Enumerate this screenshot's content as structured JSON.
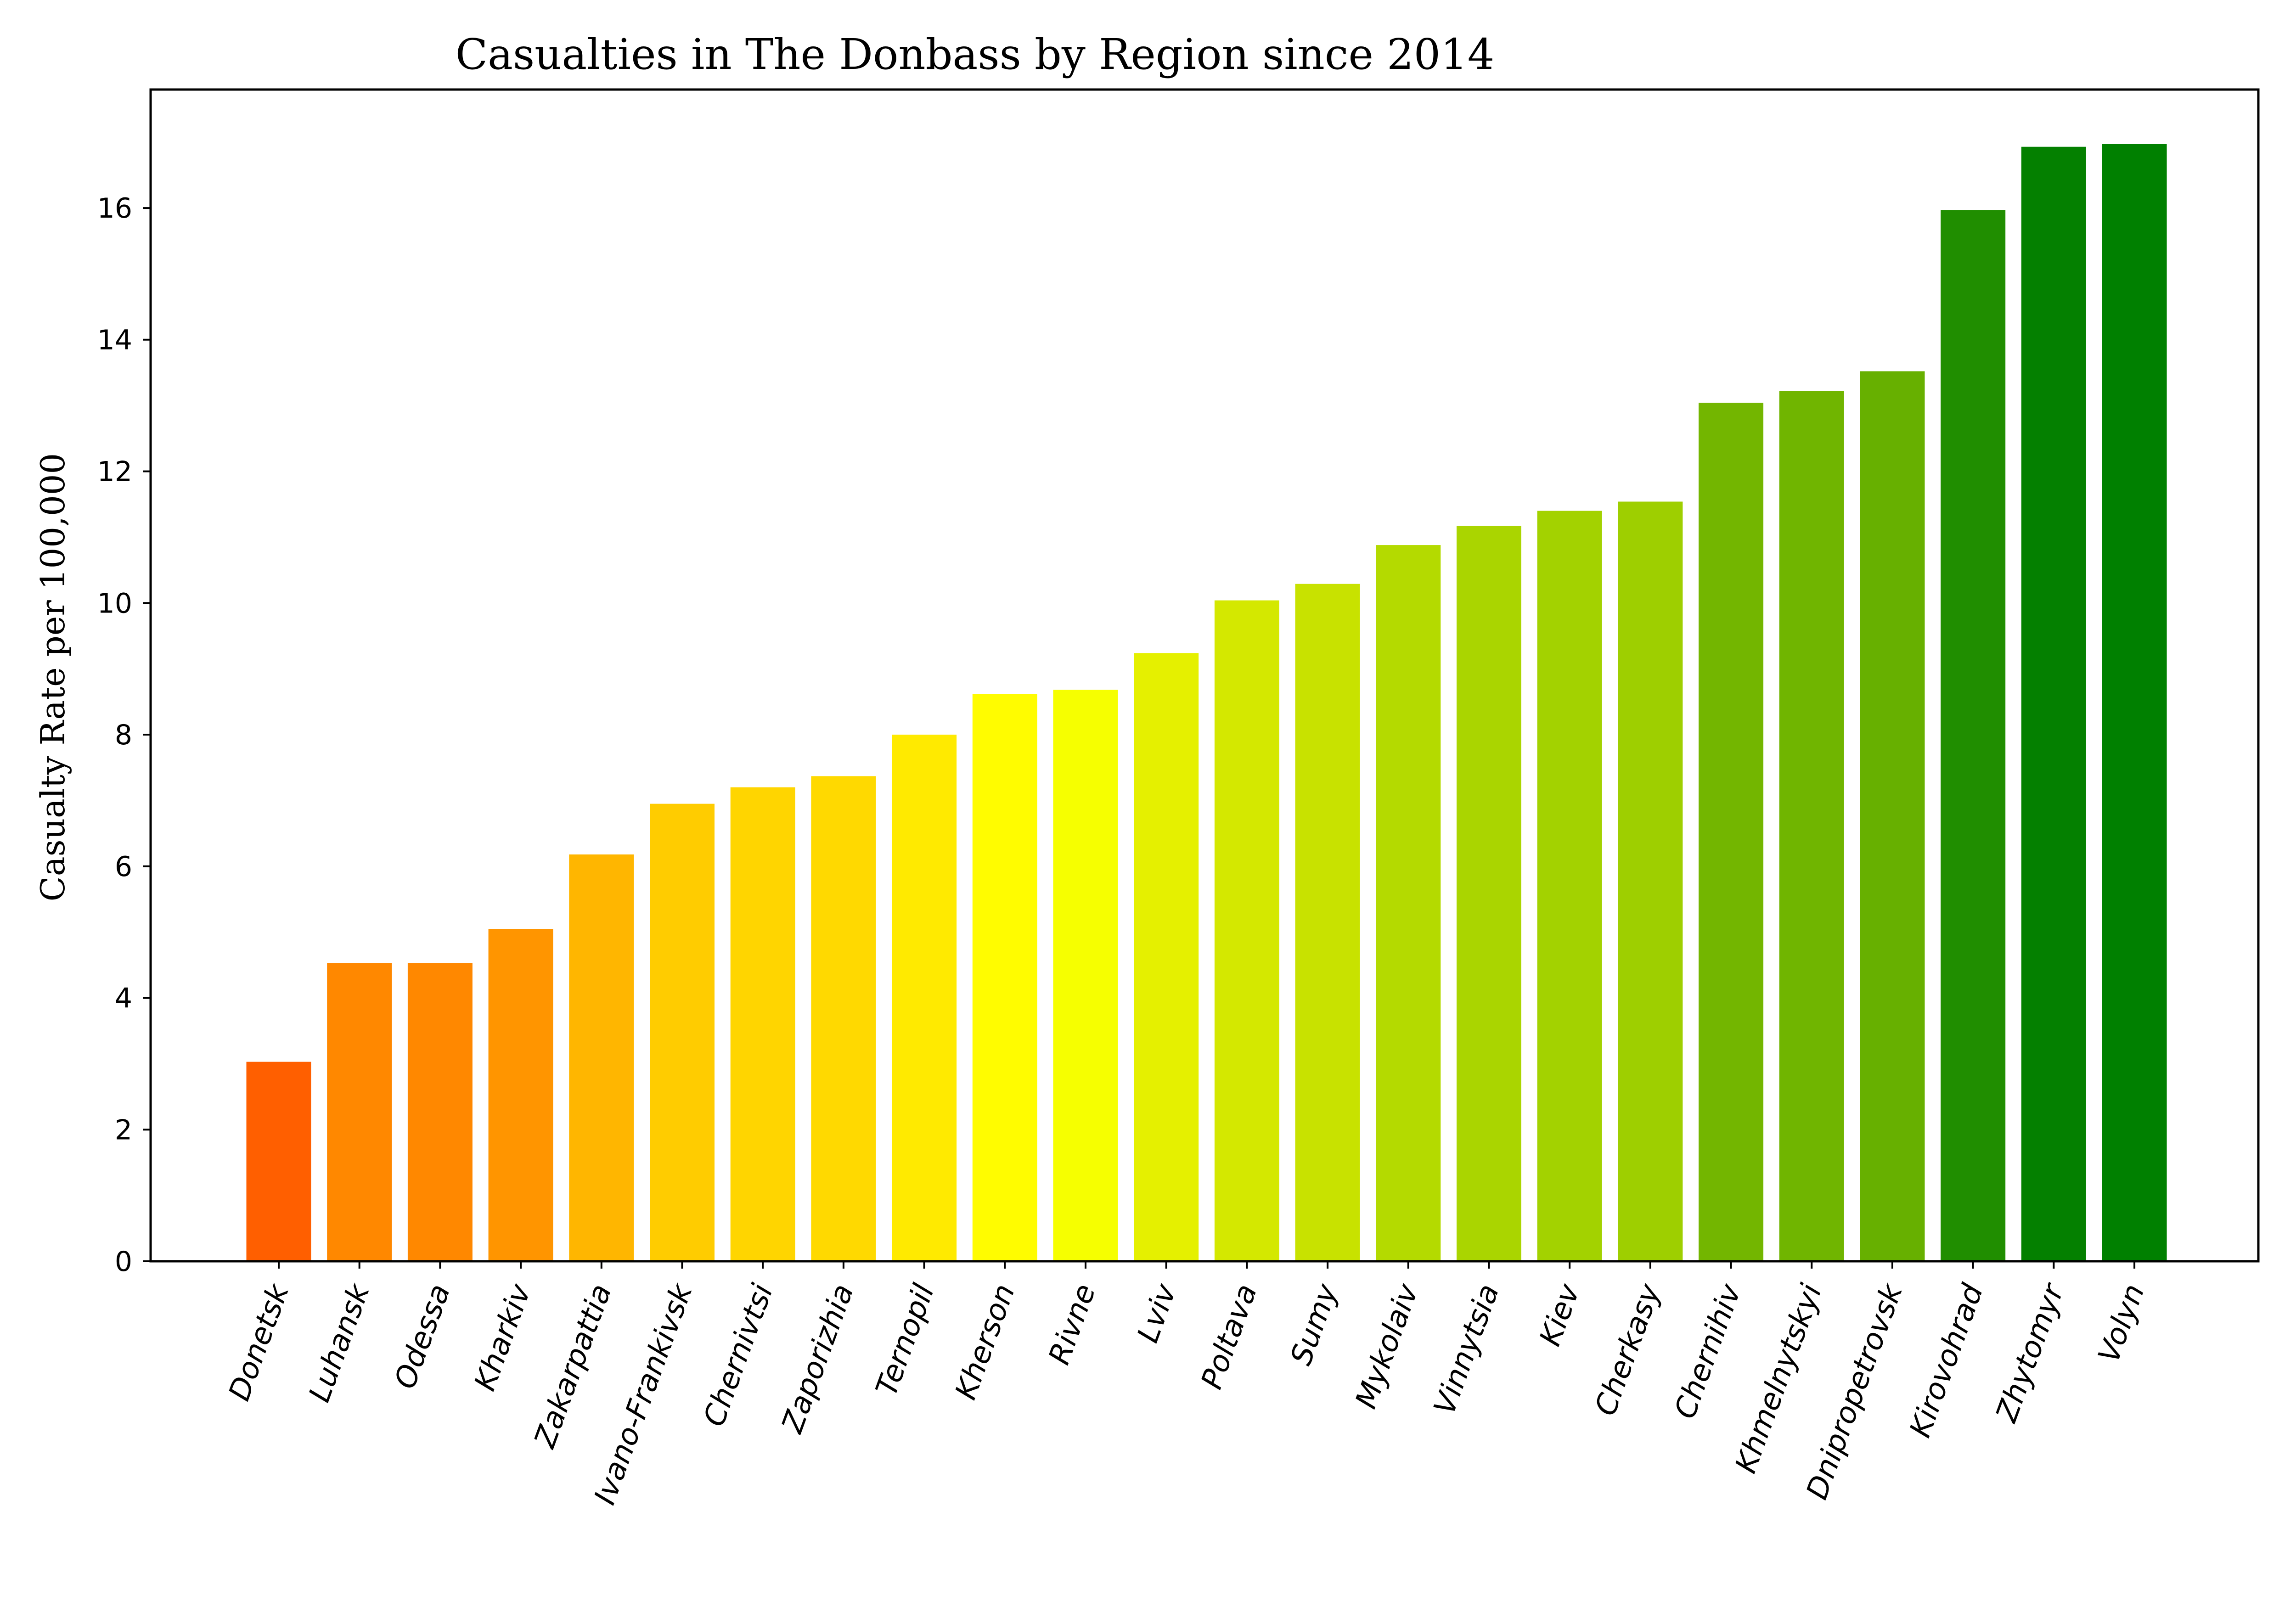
{
  "chart_data": {
    "type": "bar",
    "title": "Casualties in The Donbass by Region since 2014",
    "xlabel": "",
    "ylabel": "Casualty Rate per 100,000",
    "ylim": [
      0,
      17.8
    ],
    "yticks": [
      0,
      2,
      4,
      6,
      8,
      10,
      12,
      14,
      16
    ],
    "grid": false,
    "categories": [
      "Donetsk",
      "Luhansk",
      "Odessa",
      "Kharkiv",
      "Zakarpattia",
      "Ivano-Frankivsk",
      "Chernivtsi",
      "Zaporizhia",
      "Ternopil",
      "Kherson",
      "Rivne",
      "Lviv",
      "Poltava",
      "Sumy",
      "Mykolaiv",
      "Vinnytsia",
      "Kiev",
      "Cherkasy",
      "Chernihiv",
      "Khmelnytskyi",
      "Dnipropetrovsk",
      "Kirovohrad",
      "Zhytomyr",
      "Volyn"
    ],
    "values": [
      3.03,
      4.53,
      4.53,
      5.05,
      6.18,
      6.95,
      7.2,
      7.37,
      8.0,
      8.62,
      8.68,
      9.24,
      10.04,
      10.29,
      10.88,
      11.17,
      11.4,
      11.54,
      13.04,
      13.22,
      13.52,
      15.97,
      16.93,
      16.97
    ],
    "colors": [
      "#ff5f00",
      "#ff8800",
      "#ff8800",
      "#ff9500",
      "#ffb600",
      "#ffcc00",
      "#ffd500",
      "#ffd900",
      "#ffea00",
      "#fffc00",
      "#f6ff00",
      "#e5f000",
      "#d4e800",
      "#c8e200",
      "#b4da00",
      "#aad500",
      "#a3d200",
      "#9ecf00",
      "#73b600",
      "#70b500",
      "#67b000",
      "#208e00",
      "#048000",
      "#008000"
    ]
  }
}
